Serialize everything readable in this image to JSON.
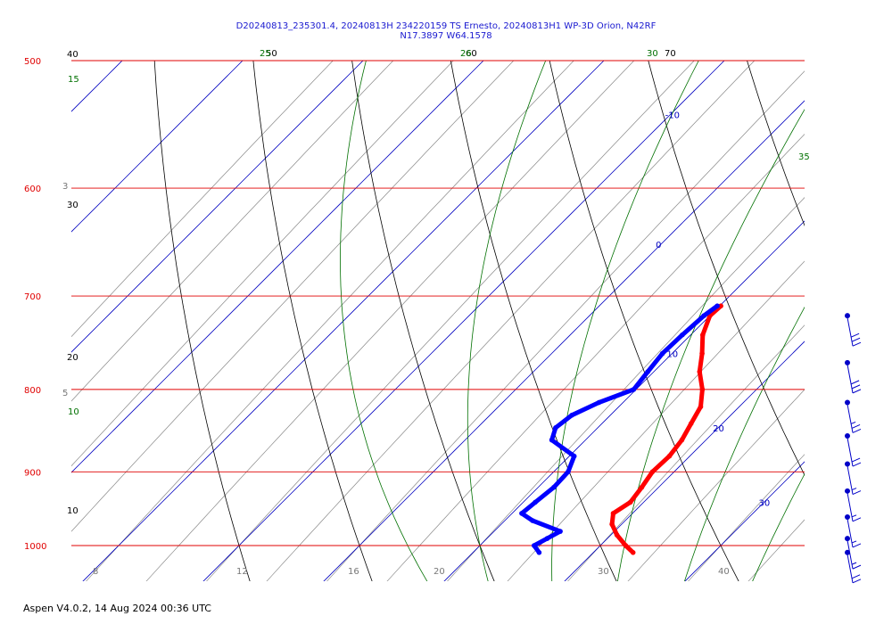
{
  "header": {
    "line1": "D20240813_235301.4, 20240813H 234220159 TS Ernesto, 20240813H1 WP-3D Orion, N42RF",
    "line2": "N17.3897 W64.1578"
  },
  "footer": "Aspen V4.0.2, 14 Aug 2024  00:36 UTC",
  "colors": {
    "isobar": "#e00000",
    "dry_adiabat": "#000000",
    "moist_adiabat": "#007000",
    "isotherm": "#0000c0",
    "mixing_ratio": "#888888",
    "temperature_trace": "#ff0000",
    "dewpoint_trace": "#0000ff",
    "wind_barb": "#0000c8"
  },
  "chart_data": {
    "type": "line",
    "title": "",
    "pressure_levels": [
      500,
      600,
      700,
      800,
      900,
      1000
    ],
    "isotherm_labels": [
      "-10",
      "0",
      "10",
      "20",
      "30"
    ],
    "dry_adiabat_labels": [
      "40",
      "30",
      "20",
      "10",
      "50",
      "60",
      "70"
    ],
    "moist_adiabat_labels": [
      "15",
      "10",
      "25",
      "26",
      "30",
      "35"
    ],
    "mixing_ratio_labels": [
      "3",
      "5",
      "8",
      "12",
      "16",
      "20",
      "30",
      "40"
    ],
    "series": [
      {
        "key": "temperature",
        "points": [
          [
            710,
            10.1
          ],
          [
            720,
            10.0
          ],
          [
            740,
            11.0
          ],
          [
            760,
            12.5
          ],
          [
            780,
            13.8
          ],
          [
            800,
            15.5
          ],
          [
            820,
            16.8
          ],
          [
            840,
            17.4
          ],
          [
            860,
            18.0
          ],
          [
            880,
            18.3
          ],
          [
            900,
            18.2
          ],
          [
            920,
            18.6
          ],
          [
            940,
            18.9
          ],
          [
            955,
            18.4
          ],
          [
            970,
            19.2
          ],
          [
            985,
            20.5
          ],
          [
            1000,
            22.1
          ],
          [
            1010,
            23.3
          ]
        ]
      },
      {
        "key": "dewpoint",
        "points": [
          [
            710,
            9.8
          ],
          [
            720,
            9.5
          ],
          [
            740,
            9.3
          ],
          [
            760,
            9.2
          ],
          [
            780,
            9.5
          ],
          [
            800,
            9.8
          ],
          [
            815,
            8.0
          ],
          [
            830,
            6.8
          ],
          [
            845,
            6.5
          ],
          [
            860,
            7.2
          ],
          [
            880,
            10.4
          ],
          [
            900,
            11.2
          ],
          [
            920,
            11.3
          ],
          [
            940,
            11.0
          ],
          [
            955,
            10.8
          ],
          [
            965,
            12.3
          ],
          [
            980,
            15.5
          ],
          [
            990,
            15.0
          ],
          [
            1000,
            14.5
          ],
          [
            1010,
            15.5
          ]
        ]
      }
    ],
    "wind_barbs": [
      {
        "pressure": 720,
        "speed_kt": 30
      },
      {
        "pressure": 770,
        "speed_kt": 30
      },
      {
        "pressure": 815,
        "speed_kt": 25
      },
      {
        "pressure": 855,
        "speed_kt": 20
      },
      {
        "pressure": 890,
        "speed_kt": 15
      },
      {
        "pressure": 925,
        "speed_kt": 15
      },
      {
        "pressure": 960,
        "speed_kt": 15
      },
      {
        "pressure": 990,
        "speed_kt": 15
      },
      {
        "pressure": 1010,
        "speed_kt": 20
      }
    ]
  }
}
